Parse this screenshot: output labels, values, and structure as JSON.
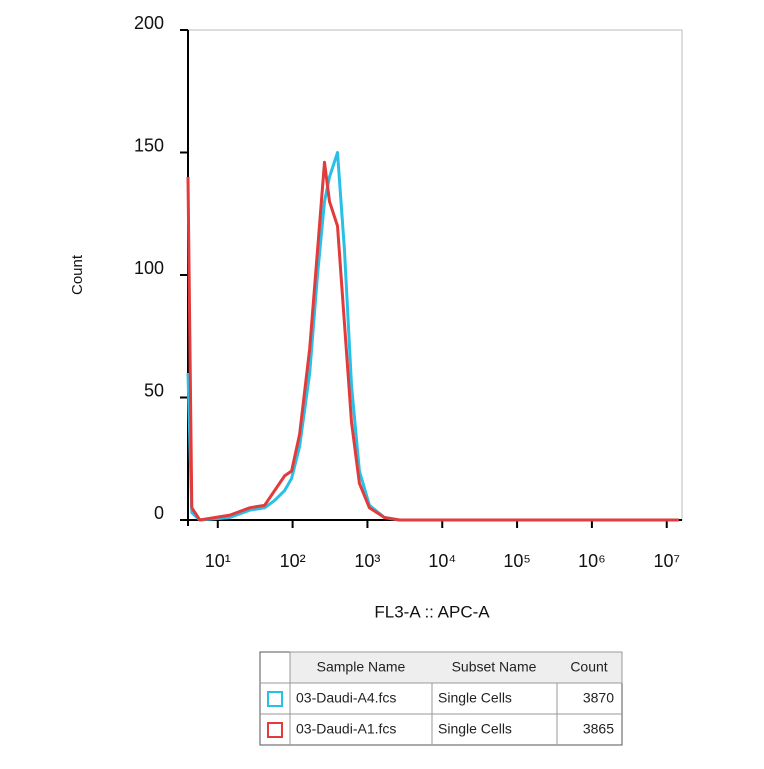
{
  "chart_data": {
    "type": "line",
    "x_scale": "log",
    "y_label": "Count",
    "x_label": "FL3-A :: APC-A",
    "x": [
      4,
      4.5,
      5.75,
      14.5,
      26.7,
      42.3,
      57.5,
      78.2,
      97,
      124,
      169,
      215,
      267,
      311,
      398,
      494,
      612,
      782,
      1063,
      1686,
      2671,
      14500000
    ],
    "series": [
      {
        "name": "03-Daudi-A4.fcs",
        "color": "#29c0e8",
        "subset": "Single Cells",
        "count": 3870,
        "values": [
          60,
          3,
          0,
          1,
          4,
          5,
          8,
          12,
          17,
          30,
          60,
          100,
          130,
          140,
          150,
          110,
          55,
          20,
          6,
          1,
          0,
          0
        ]
      },
      {
        "name": "03-Daudi-A1.fcs",
        "color": "#e23b3b",
        "subset": "Single Cells",
        "count": 3865,
        "values": [
          140,
          5,
          0,
          2,
          5,
          6,
          12,
          18,
          20,
          35,
          70,
          110,
          146,
          130,
          120,
          80,
          40,
          15,
          5,
          1,
          0,
          0
        ]
      }
    ],
    "xlim": [
      4,
      16000000
    ],
    "xticks": [
      {
        "value": 10,
        "label": "10¹"
      },
      {
        "value": 100,
        "label": "10²"
      },
      {
        "value": 1000,
        "label": "10³"
      },
      {
        "value": 10000,
        "label": "10⁴"
      },
      {
        "value": 100000,
        "label": "10⁵"
      },
      {
        "value": 1000000,
        "label": "10⁶"
      },
      {
        "value": 10000000,
        "label": "10⁷"
      }
    ],
    "ylim": [
      0,
      200
    ],
    "yticks": [
      0,
      50,
      100,
      150,
      200
    ],
    "table_headers": [
      "Sample Name",
      "Subset Name",
      "Count"
    ]
  }
}
